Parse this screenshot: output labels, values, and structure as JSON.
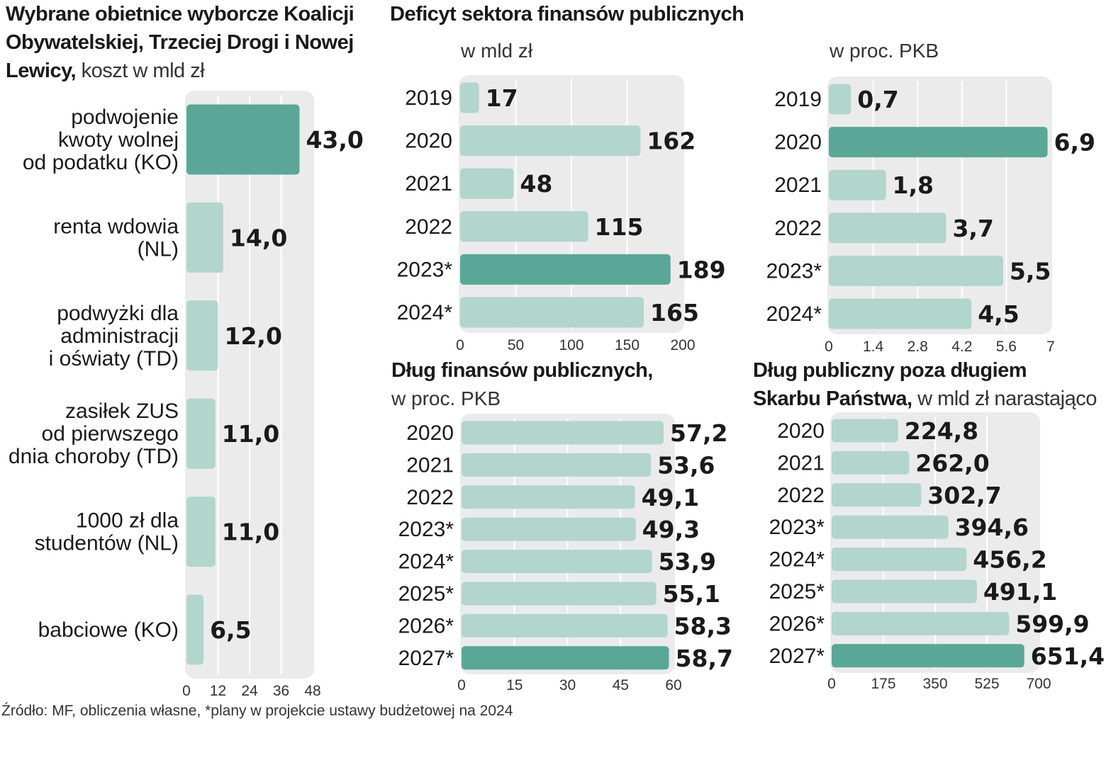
{
  "chart_data": [
    {
      "id": "promises",
      "type": "bar",
      "orientation": "horizontal",
      "title": "Wybrane obietnice wyborcze Koalicji Obywatelskiej, Trzeciej Drogi i Nowej Lewicy,",
      "subtitle": "koszt w mld zł",
      "categories": [
        [
          "podwojenie",
          "kwoty wolnej",
          "od podatku (KO)"
        ],
        [
          "renta wdowia",
          "(NL)"
        ],
        [
          "podwyżki dla",
          "administracji",
          "i oświaty (TD)"
        ],
        [
          "zasiłek ZUS",
          "od pierwszego",
          "dnia choroby (TD)"
        ],
        [
          "1000 zł dla",
          "studentów (NL)"
        ],
        [
          "babciowe (KO)"
        ]
      ],
      "values": [
        43.0,
        14.0,
        12.0,
        11.0,
        11.0,
        6.5
      ],
      "value_labels": [
        "43,0",
        "14,0",
        "12,0",
        "11,0",
        "11,0",
        "6,5"
      ],
      "highlight": [
        0
      ],
      "xlim": [
        0,
        48
      ],
      "ticks": [
        0,
        12,
        24,
        36,
        48
      ]
    },
    {
      "id": "deficit_bn",
      "type": "bar",
      "orientation": "horizontal",
      "title": "Deficyt sektora finansów publicznych",
      "subtitle": "w mld zł",
      "categories": [
        "2019",
        "2020",
        "2021",
        "2022",
        "2023*",
        "2024*"
      ],
      "values": [
        17,
        162,
        48,
        115,
        189,
        165
      ],
      "value_labels": [
        "17",
        "162",
        "48",
        "115",
        "189",
        "165"
      ],
      "highlight": [
        4
      ],
      "xlim": [
        0,
        200
      ],
      "ticks": [
        0,
        50,
        100,
        150,
        200
      ]
    },
    {
      "id": "deficit_gdp",
      "type": "bar",
      "orientation": "horizontal",
      "title": "",
      "subtitle": "w proc. PKB",
      "categories": [
        "2019",
        "2020",
        "2021",
        "2022",
        "2023*",
        "2024*"
      ],
      "values": [
        0.7,
        6.9,
        1.8,
        3.7,
        5.5,
        4.5
      ],
      "value_labels": [
        "0,7",
        "6,9",
        "1,8",
        "3,7",
        "5,5",
        "4,5"
      ],
      "highlight": [
        1
      ],
      "xlim": [
        0,
        7
      ],
      "ticks": [
        0,
        1.4,
        2.8,
        4.2,
        5.6,
        7
      ],
      "tick_labels": [
        "0",
        "1.4",
        "2.8",
        "4.2",
        "5.6",
        "7"
      ]
    },
    {
      "id": "debt_gdp",
      "type": "bar",
      "orientation": "horizontal",
      "title": "Dług finansów publicznych,",
      "subtitle": "w proc. PKB",
      "categories": [
        "2020",
        "2021",
        "2022",
        "2023*",
        "2024*",
        "2025*",
        "2026*",
        "2027*"
      ],
      "values": [
        57.2,
        53.6,
        49.1,
        49.3,
        53.9,
        55.1,
        58.3,
        58.7
      ],
      "value_labels": [
        "57,2",
        "53,6",
        "49,1",
        "49,3",
        "53,9",
        "55,1",
        "58,3",
        "58,7"
      ],
      "highlight": [
        7
      ],
      "xlim": [
        0,
        60
      ],
      "ticks": [
        0,
        15,
        30,
        45,
        60
      ]
    },
    {
      "id": "debt_outside",
      "type": "bar",
      "orientation": "horizontal",
      "title": "Dług publiczny poza długiem Skarbu Państwa,",
      "subtitle": "w mld zł narastająco",
      "categories": [
        "2020",
        "2021",
        "2022",
        "2023*",
        "2024*",
        "2025*",
        "2026*",
        "2027*"
      ],
      "values": [
        224.8,
        262.0,
        302.7,
        394.6,
        456.2,
        491.1,
        599.9,
        651.4
      ],
      "value_labels": [
        "224,8",
        "262,0",
        "302,7",
        "394,6",
        "456,2",
        "491,1",
        "599,9",
        "651,4"
      ],
      "highlight": [
        7
      ],
      "xlim": [
        0,
        700
      ],
      "ticks": [
        0,
        175,
        350,
        525,
        700
      ]
    }
  ],
  "texts": {
    "t1_line1": "Wybrane obietnice wyborcze Koalicji",
    "t1_line2": "Obywatelskiej, Trzeciej Drogi i Nowej",
    "t1_line3_bold": "Lewicy,",
    "t1_line3_light": " koszt w mld zł",
    "t2": "Deficyt sektora finansów publicznych",
    "t2_sub_a": "w mld zł",
    "t2_sub_b": "w proc. PKB",
    "t3_line1": "Dług finansów publicznych,",
    "t3_line2": "w proc. PKB",
    "t4_line1": "Dług publiczny poza długiem",
    "t4_line2_bold": "Skarbu Państwa,",
    "t4_line2_light": " w mld zł narastająco",
    "source": "Źródło: MF, obliczenia własne, *plany w projekcie ustawy budżetowej na 2024"
  },
  "colors": {
    "bar": "#b2d5cd",
    "highlight": "#5aa797",
    "panel": "#ebebeb",
    "grid": "#ffffff",
    "text": "#1a1a1a"
  }
}
